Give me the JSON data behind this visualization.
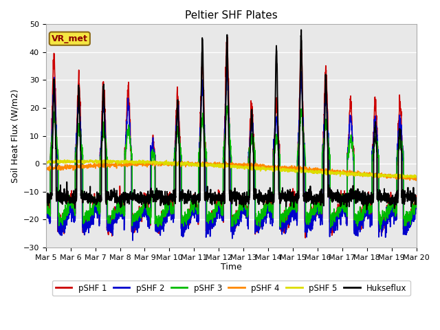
{
  "title": "Peltier SHF Plates",
  "xlabel": "Time",
  "ylabel": "Soil Heat Flux (W/m2)",
  "ylim": [
    -30,
    50
  ],
  "yticks": [
    -30,
    -20,
    -10,
    0,
    10,
    20,
    30,
    40,
    50
  ],
  "annotation": "VR_met",
  "background_color": "#e8e8e8",
  "series": {
    "pSHF 1": {
      "color": "#cc0000",
      "lw": 1.2
    },
    "pSHF 2": {
      "color": "#0000cc",
      "lw": 1.2
    },
    "pSHF 3": {
      "color": "#00bb00",
      "lw": 1.2
    },
    "pSHF 4": {
      "color": "#ff8800",
      "lw": 1.2
    },
    "pSHF 5": {
      "color": "#dddd00",
      "lw": 1.2
    },
    "Hukseflux": {
      "color": "#000000",
      "lw": 1.4
    }
  },
  "xtick_labels": [
    "Mar 5",
    "Mar 6",
    "Mar 7",
    "Mar 8",
    "Mar 9",
    "Mar 10",
    "Mar 11",
    "Mar 12",
    "Mar 13",
    "Mar 14",
    "Mar 15",
    "Mar 16",
    "Mar 17",
    "Mar 18",
    "Mar 19",
    "Mar 20"
  ],
  "n_days": 15,
  "pts_per_day": 144,
  "day_peak_amps": [
    38,
    30,
    28,
    28,
    7,
    26,
    36,
    44,
    21,
    22,
    41,
    34,
    22,
    22,
    22
  ],
  "huk_peak_amps": [
    29,
    27,
    28,
    0,
    0,
    21,
    45,
    45,
    19,
    41,
    46,
    31,
    0,
    15,
    13
  ],
  "night_base": -11,
  "night_amp": 10
}
